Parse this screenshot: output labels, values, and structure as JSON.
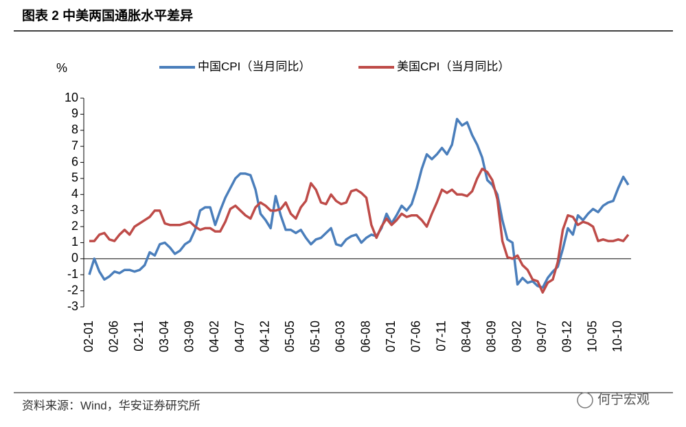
{
  "chart_data": {
    "type": "line",
    "title": "图表 2  中美两国通胀水平差异",
    "y_label": "%",
    "source": "资料来源：Wind，华安证券研究所",
    "watermark": "何宁宏观",
    "categories": [
      "02-01",
      null,
      null,
      null,
      null,
      "02-06",
      null,
      null,
      null,
      null,
      "02-11",
      null,
      null,
      null,
      null,
      "03-04",
      null,
      null,
      null,
      null,
      "03-09",
      null,
      null,
      null,
      null,
      "04-02",
      null,
      null,
      null,
      null,
      "04-07",
      null,
      null,
      null,
      null,
      "04-12",
      null,
      null,
      null,
      null,
      "05-05",
      null,
      null,
      null,
      null,
      "05-10",
      null,
      null,
      null,
      null,
      "06-03",
      null,
      null,
      null,
      null,
      "06-08",
      null,
      null,
      null,
      null,
      "07-01",
      null,
      null,
      null,
      null,
      "07-06",
      null,
      null,
      null,
      null,
      "07-11",
      null,
      null,
      null,
      null,
      "08-04",
      null,
      null,
      null,
      null,
      "08-09",
      null,
      null,
      null,
      null,
      "09-02",
      null,
      null,
      null,
      null,
      "09-07",
      null,
      null,
      null,
      null,
      "09-12",
      null,
      null,
      null,
      null,
      "10-05",
      null,
      null,
      null,
      null,
      "10-10",
      null,
      null
    ],
    "series": [
      {
        "name": "中国CPI（当月同比）",
        "color": "#4a7ebb",
        "values": [
          -1.0,
          0.0,
          -0.8,
          -1.3,
          -1.1,
          -0.8,
          -0.9,
          -0.7,
          -0.7,
          -0.8,
          -0.7,
          -0.4,
          0.4,
          0.2,
          0.9,
          1.0,
          0.7,
          0.3,
          0.5,
          0.9,
          1.1,
          1.8,
          3.0,
          3.2,
          3.2,
          2.1,
          3.0,
          3.8,
          4.4,
          5.0,
          5.3,
          5.3,
          5.2,
          4.3,
          2.8,
          2.4,
          1.9,
          3.9,
          2.7,
          1.8,
          1.8,
          1.6,
          1.8,
          1.3,
          0.9,
          1.2,
          1.3,
          1.6,
          1.9,
          0.9,
          0.8,
          1.2,
          1.4,
          1.5,
          1.0,
          1.3,
          1.5,
          1.4,
          1.9,
          2.8,
          2.2,
          2.7,
          3.3,
          3.0,
          3.4,
          4.4,
          5.6,
          6.5,
          6.2,
          6.5,
          6.9,
          6.5,
          7.1,
          8.7,
          8.3,
          8.5,
          7.7,
          7.1,
          6.3,
          4.9,
          4.6,
          4.0,
          2.4,
          1.2,
          1.0,
          -1.6,
          -1.2,
          -1.5,
          -1.4,
          -1.7,
          -1.8,
          -1.2,
          -0.8,
          -0.5,
          0.6,
          1.9,
          1.5,
          2.7,
          2.4,
          2.8,
          3.1,
          2.9,
          3.3,
          3.5,
          3.6,
          4.4,
          5.1,
          4.6
        ]
      },
      {
        "name": "美国CPI（当月同比）",
        "color": "#be4b48",
        "values": [
          1.1,
          1.1,
          1.5,
          1.6,
          1.2,
          1.1,
          1.5,
          1.8,
          1.5,
          2.0,
          2.2,
          2.4,
          2.6,
          3.0,
          3.0,
          2.2,
          2.1,
          2.1,
          2.1,
          2.2,
          2.3,
          2.0,
          1.8,
          1.9,
          1.9,
          1.7,
          1.7,
          2.3,
          3.1,
          3.3,
          3.0,
          2.7,
          2.5,
          3.2,
          3.5,
          3.3,
          3.0,
          3.0,
          3.1,
          3.5,
          2.8,
          2.5,
          3.2,
          3.6,
          4.7,
          4.3,
          3.5,
          3.4,
          4.0,
          3.6,
          3.4,
          3.5,
          4.2,
          4.3,
          4.1,
          3.8,
          2.1,
          1.3,
          2.0,
          2.5,
          2.1,
          2.4,
          2.8,
          2.6,
          2.7,
          2.7,
          2.4,
          2.0,
          2.8,
          3.5,
          4.3,
          4.1,
          4.3,
          4.0,
          4.0,
          3.9,
          4.2,
          5.0,
          5.6,
          5.4,
          4.9,
          3.7,
          1.1,
          0.1,
          0.0,
          0.2,
          -0.4,
          -0.7,
          -1.3,
          -1.4,
          -2.1,
          -1.5,
          -1.3,
          -0.2,
          1.8,
          2.7,
          2.6,
          2.1,
          2.3,
          2.2,
          2.0,
          1.1,
          1.2,
          1.1,
          1.1,
          1.2,
          1.1,
          1.5
        ]
      }
    ],
    "ylim": [
      -3,
      10
    ],
    "yticks": [
      -3,
      -2,
      -1,
      0,
      1,
      2,
      3,
      4,
      5,
      6,
      7,
      8,
      9,
      10
    ]
  }
}
